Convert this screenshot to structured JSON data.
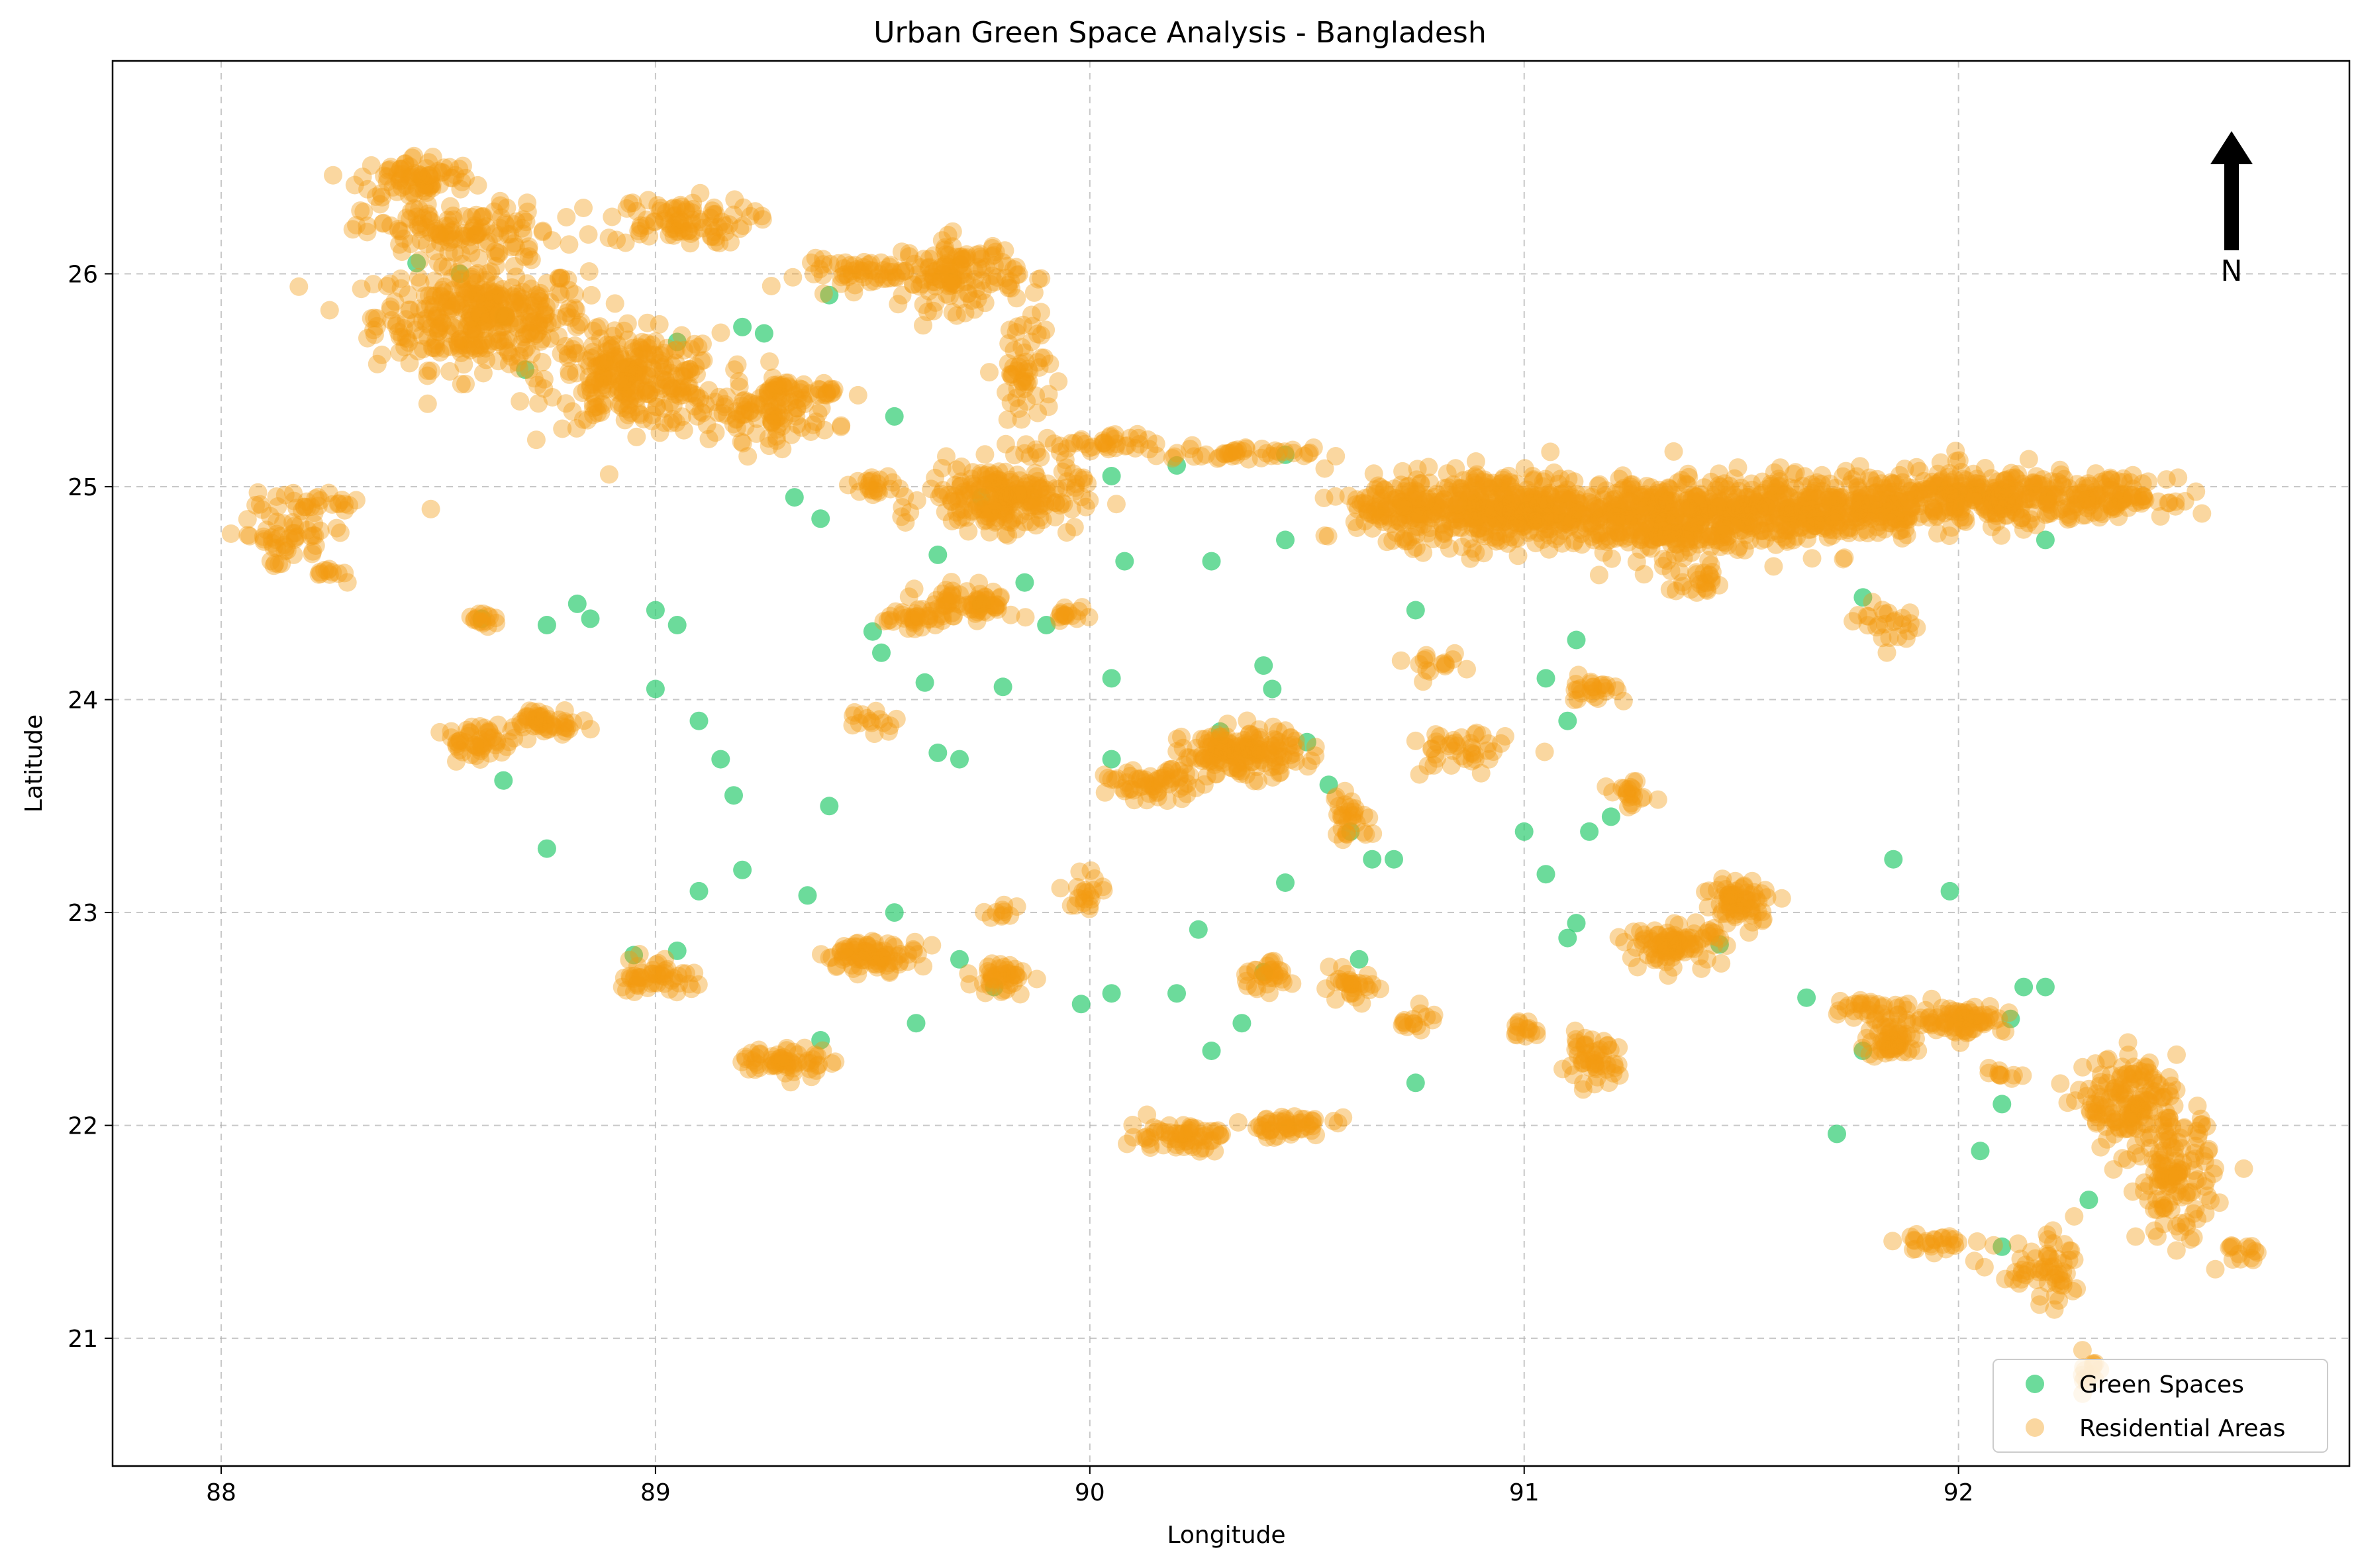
{
  "chart_data": {
    "type": "scatter",
    "title": "Urban Green Space Analysis - Bangladesh",
    "xlabel": "Longitude",
    "ylabel": "Latitude",
    "xlim": [
      87.75,
      92.9
    ],
    "ylim": [
      20.4,
      27.0
    ],
    "xticks": [
      "88",
      "89",
      "90",
      "91",
      "92"
    ],
    "yticks": [
      "21",
      "22",
      "23",
      "24",
      "25",
      "26"
    ],
    "grid": true,
    "legend_position": "lower right",
    "north_arrow_label": "N",
    "series": [
      {
        "name": "Green Spaces",
        "color": "#2ecc71",
        "alpha": 0.7,
        "points": [
          [
            88.45,
            26.05
          ],
          [
            88.55,
            26.0
          ],
          [
            88.65,
            25.8
          ],
          [
            88.7,
            25.55
          ],
          [
            89.05,
            25.68
          ],
          [
            89.2,
            25.75
          ],
          [
            89.25,
            25.72
          ],
          [
            89.4,
            25.9
          ],
          [
            89.55,
            25.33
          ],
          [
            89.75,
            24.95
          ],
          [
            90.05,
            25.05
          ],
          [
            90.2,
            25.1
          ],
          [
            90.45,
            25.15
          ],
          [
            89.85,
            24.55
          ],
          [
            89.75,
            24.45
          ],
          [
            89.9,
            24.35
          ],
          [
            90.08,
            24.65
          ],
          [
            90.28,
            24.65
          ],
          [
            90.45,
            24.75
          ],
          [
            88.6,
            24.38
          ],
          [
            88.75,
            24.35
          ],
          [
            88.82,
            24.45
          ],
          [
            88.85,
            24.38
          ],
          [
            89.0,
            24.42
          ],
          [
            89.05,
            24.35
          ],
          [
            89.0,
            24.05
          ],
          [
            89.1,
            23.9
          ],
          [
            89.15,
            23.72
          ],
          [
            89.18,
            23.55
          ],
          [
            88.65,
            23.62
          ],
          [
            88.75,
            23.3
          ],
          [
            89.2,
            23.2
          ],
          [
            89.1,
            23.1
          ],
          [
            89.35,
            23.08
          ],
          [
            88.95,
            22.8
          ],
          [
            89.05,
            22.82
          ],
          [
            89.38,
            22.4
          ],
          [
            89.55,
            23.0
          ],
          [
            89.6,
            22.48
          ],
          [
            89.7,
            22.78
          ],
          [
            89.78,
            22.65
          ],
          [
            89.98,
            22.57
          ],
          [
            90.05,
            22.62
          ],
          [
            90.2,
            22.62
          ],
          [
            90.25,
            22.92
          ],
          [
            90.28,
            22.35
          ],
          [
            90.4,
            22.72
          ],
          [
            90.35,
            22.48
          ],
          [
            89.65,
            23.75
          ],
          [
            89.7,
            23.72
          ],
          [
            89.62,
            24.08
          ],
          [
            89.8,
            24.06
          ],
          [
            89.5,
            24.32
          ],
          [
            89.65,
            24.68
          ],
          [
            90.05,
            24.1
          ],
          [
            90.05,
            23.72
          ],
          [
            90.3,
            23.85
          ],
          [
            90.4,
            24.16
          ],
          [
            90.42,
            24.05
          ],
          [
            90.5,
            23.8
          ],
          [
            90.55,
            23.6
          ],
          [
            90.6,
            23.38
          ],
          [
            90.65,
            23.25
          ],
          [
            90.7,
            23.25
          ],
          [
            90.75,
            22.2
          ],
          [
            90.62,
            22.78
          ],
          [
            90.45,
            23.14
          ],
          [
            90.75,
            24.42
          ],
          [
            91.1,
            23.9
          ],
          [
            91.0,
            23.38
          ],
          [
            91.05,
            23.18
          ],
          [
            91.12,
            22.95
          ],
          [
            91.1,
            22.88
          ],
          [
            91.15,
            23.38
          ],
          [
            91.2,
            23.45
          ],
          [
            91.45,
            22.85
          ],
          [
            91.65,
            22.6
          ],
          [
            91.72,
            21.96
          ],
          [
            91.78,
            22.35
          ],
          [
            91.85,
            23.25
          ],
          [
            91.98,
            23.1
          ],
          [
            92.05,
            21.88
          ],
          [
            92.1,
            22.1
          ],
          [
            92.12,
            22.5
          ],
          [
            92.15,
            22.65
          ],
          [
            92.2,
            22.65
          ],
          [
            92.3,
            21.65
          ],
          [
            92.1,
            21.43
          ],
          [
            91.78,
            24.48
          ],
          [
            91.12,
            24.28
          ],
          [
            91.05,
            24.1
          ],
          [
            92.2,
            24.75
          ],
          [
            89.38,
            24.85
          ],
          [
            89.32,
            24.95
          ],
          [
            89.52,
            24.22
          ],
          [
            89.4,
            23.5
          ]
        ]
      },
      {
        "name": "Residential Areas",
        "color": "#f39c12",
        "alpha": 0.4,
        "clusters": [
          [
            88.6,
            25.8,
            0.22,
            0.22,
            360
          ],
          [
            88.95,
            25.5,
            0.18,
            0.2,
            260
          ],
          [
            88.45,
            26.45,
            0.12,
            0.1,
            80
          ],
          [
            89.05,
            26.25,
            0.15,
            0.1,
            90
          ],
          [
            88.55,
            26.2,
            0.2,
            0.12,
            120
          ],
          [
            89.25,
            25.35,
            0.15,
            0.12,
            100
          ],
          [
            89.5,
            26.0,
            0.15,
            0.06,
            60
          ],
          [
            89.7,
            26.0,
            0.12,
            0.15,
            120
          ],
          [
            89.3,
            25.45,
            0.05,
            0.05,
            25
          ],
          [
            89.85,
            25.55,
            0.06,
            0.3,
            60
          ],
          [
            89.8,
            24.95,
            0.16,
            0.14,
            220
          ],
          [
            90.0,
            25.2,
            0.15,
            0.04,
            40
          ],
          [
            90.35,
            25.15,
            0.15,
            0.03,
            40
          ],
          [
            90.95,
            24.9,
            0.22,
            0.16,
            380
          ],
          [
            91.3,
            24.85,
            0.22,
            0.16,
            380
          ],
          [
            91.65,
            24.9,
            0.25,
            0.14,
            380
          ],
          [
            92.05,
            24.95,
            0.25,
            0.12,
            300
          ],
          [
            92.35,
            24.95,
            0.12,
            0.08,
            100
          ],
          [
            90.7,
            24.9,
            0.12,
            0.12,
            100
          ],
          [
            88.15,
            24.75,
            0.1,
            0.12,
            50
          ],
          [
            88.2,
            24.92,
            0.12,
            0.05,
            30
          ],
          [
            88.25,
            24.6,
            0.05,
            0.02,
            10
          ],
          [
            89.72,
            24.45,
            0.1,
            0.08,
            70
          ],
          [
            89.6,
            24.38,
            0.08,
            0.03,
            30
          ],
          [
            90.35,
            23.75,
            0.12,
            0.1,
            160
          ],
          [
            90.15,
            23.6,
            0.1,
            0.06,
            60
          ],
          [
            88.75,
            23.9,
            0.08,
            0.05,
            50
          ],
          [
            88.6,
            23.8,
            0.08,
            0.07,
            50
          ],
          [
            88.6,
            24.38,
            0.04,
            0.03,
            15
          ],
          [
            89.5,
            22.8,
            0.1,
            0.06,
            80
          ],
          [
            89.0,
            22.7,
            0.08,
            0.08,
            50
          ],
          [
            89.3,
            22.3,
            0.1,
            0.06,
            60
          ],
          [
            89.8,
            22.7,
            0.06,
            0.08,
            40
          ],
          [
            90.2,
            21.95,
            0.1,
            0.06,
            60
          ],
          [
            90.45,
            22.0,
            0.1,
            0.05,
            50
          ],
          [
            90.4,
            22.7,
            0.06,
            0.06,
            30
          ],
          [
            90.6,
            22.65,
            0.06,
            0.06,
            30
          ],
          [
            91.15,
            22.3,
            0.06,
            0.1,
            50
          ],
          [
            91.35,
            22.85,
            0.1,
            0.08,
            90
          ],
          [
            91.5,
            23.05,
            0.08,
            0.1,
            70
          ],
          [
            92.0,
            22.5,
            0.1,
            0.06,
            80
          ],
          [
            91.85,
            22.4,
            0.06,
            0.08,
            60
          ],
          [
            92.4,
            22.1,
            0.1,
            0.2,
            160
          ],
          [
            92.5,
            21.75,
            0.08,
            0.25,
            120
          ],
          [
            92.2,
            21.3,
            0.1,
            0.15,
            60
          ],
          [
            92.3,
            20.85,
            0.03,
            0.1,
            15
          ],
          [
            91.95,
            21.45,
            0.08,
            0.04,
            25
          ],
          [
            92.65,
            21.4,
            0.05,
            0.08,
            15
          ],
          [
            90.85,
            23.75,
            0.1,
            0.1,
            40
          ],
          [
            91.15,
            24.05,
            0.06,
            0.05,
            25
          ],
          [
            91.25,
            23.55,
            0.05,
            0.05,
            20
          ],
          [
            90.6,
            23.45,
            0.05,
            0.1,
            30
          ],
          [
            89.95,
            24.4,
            0.04,
            0.04,
            15
          ],
          [
            89.5,
            23.9,
            0.05,
            0.05,
            15
          ],
          [
            89.4,
            25.45,
            0.02,
            0.02,
            10
          ],
          [
            89.5,
            25.0,
            0.05,
            0.05,
            20
          ],
          [
            90.0,
            23.1,
            0.04,
            0.1,
            20
          ],
          [
            90.75,
            22.5,
            0.04,
            0.05,
            15
          ],
          [
            92.1,
            22.25,
            0.04,
            0.05,
            10
          ],
          [
            91.8,
            22.55,
            0.08,
            0.05,
            30
          ],
          [
            91.0,
            22.45,
            0.04,
            0.04,
            15
          ],
          [
            89.8,
            23.0,
            0.04,
            0.03,
            10
          ],
          [
            90.8,
            24.15,
            0.05,
            0.05,
            15
          ],
          [
            91.85,
            24.35,
            0.08,
            0.08,
            25
          ],
          [
            91.4,
            24.55,
            0.06,
            0.06,
            25
          ]
        ]
      }
    ]
  }
}
